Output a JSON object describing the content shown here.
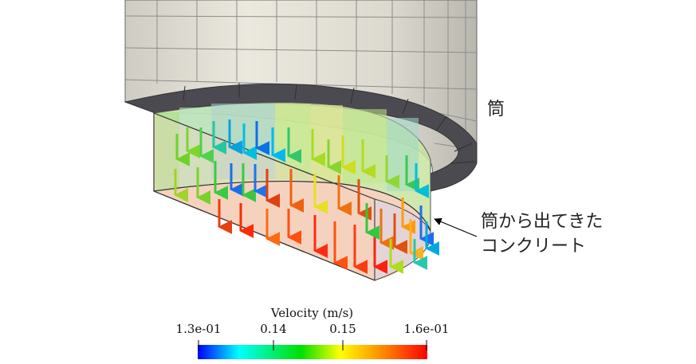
{
  "labels": {
    "cylinder": "筒",
    "concrete_line1": "筒から出てきた",
    "concrete_line2": "コンクリート"
  },
  "colorbar": {
    "title": "Velocity (m/s)",
    "ticks": [
      "1.3e-01",
      "0.14",
      "0.15",
      "1.6e-01"
    ],
    "min": 0.13,
    "max": 0.16,
    "colormap": [
      "#0000ff",
      "#00ffff",
      "#00ff00",
      "#ffff00",
      "#ff8000",
      "#ff0000"
    ]
  },
  "colors": {
    "cylinder_face": "#e6e3d8",
    "cylinder_bottom_ring": "#4a4a50",
    "mesh_line": "#8c8c8c"
  }
}
